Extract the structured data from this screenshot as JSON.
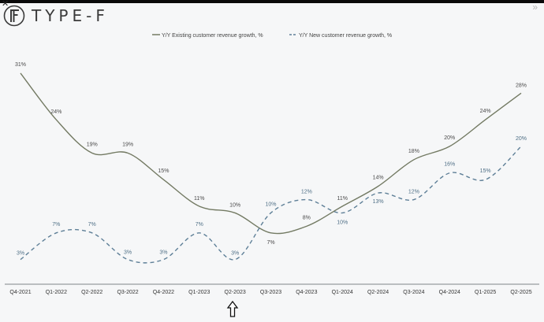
{
  "brand": {
    "name": "TYPE-F",
    "logo_icon": "type-f-logo-icon"
  },
  "colors": {
    "existing": "#737a63",
    "new": "#5e7f97",
    "axis": "#7f8488",
    "label": "#4a4a4a"
  },
  "chart_data": {
    "type": "line",
    "categories": [
      "Q4-2021",
      "Q1-2022",
      "Q2-2022",
      "Q3-2022",
      "Q4-2022",
      "Q1-2023",
      "Q2-2023",
      "Q3-2023",
      "Q4-2023",
      "Q1-2024",
      "Q2-2024",
      "Q3-2024",
      "Q4-2024",
      "Q1-2025",
      "Q2-2025"
    ],
    "series": [
      {
        "name": "Y/Y Existing customer revenue growth, %",
        "style": "solid",
        "values": [
          31,
          24,
          19,
          19,
          15,
          11,
          10,
          7,
          8,
          11,
          14,
          18,
          20,
          24,
          28
        ],
        "labels": [
          "31%",
          "24%",
          "19%",
          "19%",
          "15%",
          "11%",
          "10%",
          "7%",
          "8%",
          "11%",
          "14%",
          "18%",
          "20%",
          "24%",
          "28%"
        ]
      },
      {
        "name": "Y/Y New customer revenue growth, %",
        "style": "dashed",
        "values": [
          3,
          7,
          7,
          3,
          3,
          7,
          3,
          10,
          12,
          10,
          13,
          12,
          16,
          15,
          20
        ],
        "labels": [
          "3%",
          "7%",
          "7%",
          "3%",
          "3%",
          "7%",
          "3%",
          "10%",
          "12%",
          "10%",
          "13%",
          "12%",
          "16%",
          "15%",
          "20%"
        ]
      }
    ],
    "ylim": [
      0,
      33
    ],
    "grid": false,
    "legend": "top-center"
  }
}
